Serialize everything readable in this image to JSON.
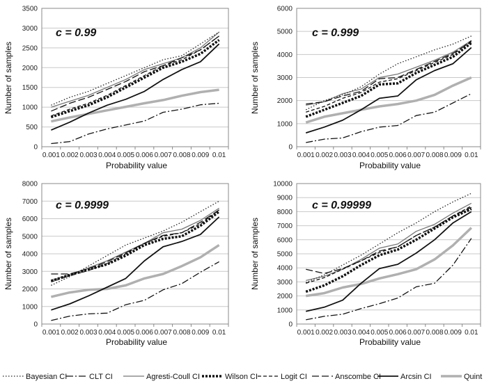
{
  "figure_background": "#ffffff",
  "legend": [
    {
      "name": "Bayesian CI",
      "color": "#222222",
      "width": 1.3,
      "dash": "1.5,2.5"
    },
    {
      "name": "CLT CI",
      "color": "#111111",
      "width": 1.3,
      "dash": "10,3,2,3"
    },
    {
      "name": "Agresti-Coull CI",
      "color": "#777777",
      "width": 1.3,
      "dash": ""
    },
    {
      "name": "Wilson CI",
      "color": "#111111",
      "width": 3.5,
      "dash": "3,2"
    },
    {
      "name": "Logit CI",
      "color": "#111111",
      "width": 1.3,
      "dash": "5,3"
    },
    {
      "name": "Anscombe CI",
      "color": "#111111",
      "width": 1.3,
      "dash": "10,4"
    },
    {
      "name": "Arcsin CI",
      "color": "#111111",
      "width": 1.8,
      "dash": ""
    },
    {
      "name": "Quint",
      "color": "#b0b0b0",
      "width": 3.5,
      "dash": ""
    }
  ],
  "chart_data": [
    {
      "type": "line",
      "title": "c = 0.99",
      "xlabel": "Probability value",
      "ylabel": "Number of samples",
      "categories": [
        "0.001",
        "0.002",
        "0.003",
        "0.004",
        "0.005",
        "0.006",
        "0.007",
        "0.008",
        "0.009",
        "0.01"
      ],
      "ylim": [
        0,
        3500
      ],
      "yticks": [
        "0",
        "500",
        "1000",
        "1500",
        "2000",
        "2500",
        "3000",
        "3500"
      ],
      "grid": true,
      "series": [
        {
          "name": "Bayesian CI",
          "values": [
            1050,
            1250,
            1400,
            1600,
            1800,
            2000,
            2200,
            2300,
            2600,
            2900
          ]
        },
        {
          "name": "CLT CI",
          "values": [
            80,
            130,
            320,
            450,
            550,
            650,
            870,
            950,
            1060,
            1100
          ]
        },
        {
          "name": "Agresti-Coull CI",
          "values": [
            1000,
            1150,
            1300,
            1500,
            1700,
            1950,
            2100,
            2250,
            2500,
            2900
          ]
        },
        {
          "name": "Wilson CI",
          "values": [
            750,
            900,
            1050,
            1250,
            1500,
            1750,
            2000,
            2150,
            2350,
            2700
          ]
        },
        {
          "name": "Logit CI",
          "values": [
            780,
            950,
            1100,
            1300,
            1550,
            1800,
            2050,
            2200,
            2450,
            2800
          ]
        },
        {
          "name": "Anscombe CI",
          "values": [
            900,
            1100,
            1250,
            1450,
            1650,
            1900,
            2050,
            2250,
            2450,
            2800
          ]
        },
        {
          "name": "Arcsin CI",
          "values": [
            420,
            620,
            850,
            1050,
            1200,
            1400,
            1700,
            1950,
            2150,
            2600
          ]
        },
        {
          "name": "Quint",
          "values": [
            640,
            740,
            830,
            920,
            1010,
            1100,
            1180,
            1290,
            1380,
            1440
          ]
        }
      ]
    },
    {
      "type": "line",
      "title": "c = 0.999",
      "xlabel": "Probability value",
      "ylabel": "Number of samples",
      "categories": [
        "0.001",
        "0.002",
        "0.003",
        "0.004",
        "0.005",
        "0.006",
        "0.007",
        "0.008",
        "0.009",
        "0.01"
      ],
      "ylim": [
        0,
        6000
      ],
      "yticks": [
        "0",
        "1000",
        "2000",
        "3000",
        "4000",
        "5000",
        "6000"
      ],
      "grid": true,
      "series": [
        {
          "name": "Bayesian CI",
          "values": [
            1600,
            2000,
            2250,
            2600,
            3150,
            3600,
            3900,
            4200,
            4450,
            4800
          ]
        },
        {
          "name": "CLT CI",
          "values": [
            180,
            330,
            380,
            650,
            850,
            920,
            1350,
            1500,
            1900,
            2300
          ]
        },
        {
          "name": "Agresti-Coull CI",
          "values": [
            1800,
            1950,
            2300,
            2500,
            3000,
            3150,
            3450,
            3750,
            4100,
            4600
          ]
        },
        {
          "name": "Wilson CI",
          "values": [
            1300,
            1600,
            1900,
            2200,
            2700,
            2750,
            3200,
            3550,
            3900,
            4500
          ]
        },
        {
          "name": "Logit CI",
          "values": [
            1500,
            1750,
            2100,
            2350,
            2800,
            2950,
            3300,
            3650,
            4000,
            4600
          ]
        },
        {
          "name": "Anscombe CI",
          "values": [
            1850,
            1950,
            2200,
            2400,
            2950,
            3000,
            3350,
            3700,
            4050,
            4550
          ]
        },
        {
          "name": "Arcsin CI",
          "values": [
            600,
            850,
            1150,
            1600,
            2100,
            2200,
            2900,
            3300,
            3600,
            4300
          ]
        },
        {
          "name": "Quint",
          "values": [
            1050,
            1300,
            1450,
            1600,
            1750,
            1850,
            2000,
            2250,
            2650,
            3000
          ]
        }
      ]
    },
    {
      "type": "line",
      "title": "c = 0.9999",
      "xlabel": "Probability value",
      "ylabel": "Number of samples",
      "categories": [
        "0.001",
        "0.002",
        "0.003",
        "0.004",
        "0.005",
        "0.006",
        "0.007",
        "0.008",
        "0.009",
        "0.01"
      ],
      "ylim": [
        0,
        8000
      ],
      "yticks": [
        "0",
        "1000",
        "2000",
        "3000",
        "4000",
        "5000",
        "6000",
        "7000",
        "8000"
      ],
      "grid": true,
      "series": [
        {
          "name": "Bayesian CI",
          "values": [
            2200,
            2700,
            3300,
            3900,
            4500,
            4900,
            5300,
            5800,
            6400,
            7000
          ]
        },
        {
          "name": "CLT CI",
          "values": [
            200,
            450,
            580,
            620,
            1100,
            1350,
            1950,
            2300,
            2950,
            3550
          ]
        },
        {
          "name": "Agresti-Coull CI",
          "values": [
            2500,
            2800,
            3200,
            3600,
            4100,
            4600,
            5200,
            5400,
            5900,
            6600
          ]
        },
        {
          "name": "Wilson CI",
          "values": [
            2450,
            2800,
            3100,
            3400,
            3900,
            4500,
            4850,
            5000,
            5600,
            6400
          ]
        },
        {
          "name": "Logit CI",
          "values": [
            2400,
            2750,
            3050,
            3450,
            4000,
            4600,
            5000,
            5200,
            5700,
            6500
          ]
        },
        {
          "name": "Anscombe CI",
          "values": [
            2850,
            2850,
            3150,
            3550,
            4050,
            4600,
            5050,
            5200,
            5800,
            6500
          ]
        },
        {
          "name": "Arcsin CI",
          "values": [
            800,
            1150,
            1600,
            2100,
            2600,
            3600,
            4400,
            4700,
            5100,
            6100
          ]
        },
        {
          "name": "Quint",
          "values": [
            1550,
            1800,
            1950,
            2000,
            2200,
            2600,
            2850,
            3300,
            3800,
            4500
          ]
        }
      ]
    },
    {
      "type": "line",
      "title": "c = 0.99999",
      "xlabel": "Probability value",
      "ylabel": "Number of samples",
      "categories": [
        "0.001",
        "0.002",
        "0.003",
        "0.004",
        "0.005",
        "0.006",
        "0.007",
        "0.008",
        "0.009",
        "0.01"
      ],
      "ylim": [
        0,
        10000
      ],
      "yticks": [
        "0",
        "1000",
        "2000",
        "3000",
        "4000",
        "5000",
        "6000",
        "7000",
        "8000",
        "9000",
        "10000"
      ],
      "grid": true,
      "series": [
        {
          "name": "Bayesian CI",
          "values": [
            2950,
            3500,
            4200,
            4900,
            5700,
            6500,
            7200,
            8000,
            8700,
            9300
          ]
        },
        {
          "name": "CLT CI",
          "values": [
            300,
            550,
            700,
            1100,
            1450,
            1850,
            2650,
            2900,
            4200,
            6100
          ]
        },
        {
          "name": "Agresti-Coull CI",
          "values": [
            3100,
            3400,
            3900,
            4600,
            5400,
            5700,
            6600,
            7100,
            7900,
            8600
          ]
        },
        {
          "name": "Wilson CI",
          "values": [
            2300,
            2750,
            3400,
            4200,
            4900,
            5300,
            6000,
            6800,
            7600,
            8200
          ]
        },
        {
          "name": "Logit CI",
          "values": [
            2900,
            3300,
            3900,
            4500,
            5100,
            5500,
            6300,
            6900,
            7700,
            8400
          ]
        },
        {
          "name": "Anscombe CI",
          "values": [
            3900,
            3600,
            3950,
            4500,
            5200,
            5500,
            6300,
            6900,
            7700,
            8300
          ]
        },
        {
          "name": "Arcsin CI",
          "values": [
            900,
            1200,
            1700,
            2900,
            3950,
            4250,
            5050,
            6000,
            7200,
            8000
          ]
        },
        {
          "name": "Quint",
          "values": [
            2000,
            2200,
            2600,
            2850,
            3250,
            3550,
            3900,
            4600,
            5600,
            6850
          ]
        }
      ]
    }
  ]
}
